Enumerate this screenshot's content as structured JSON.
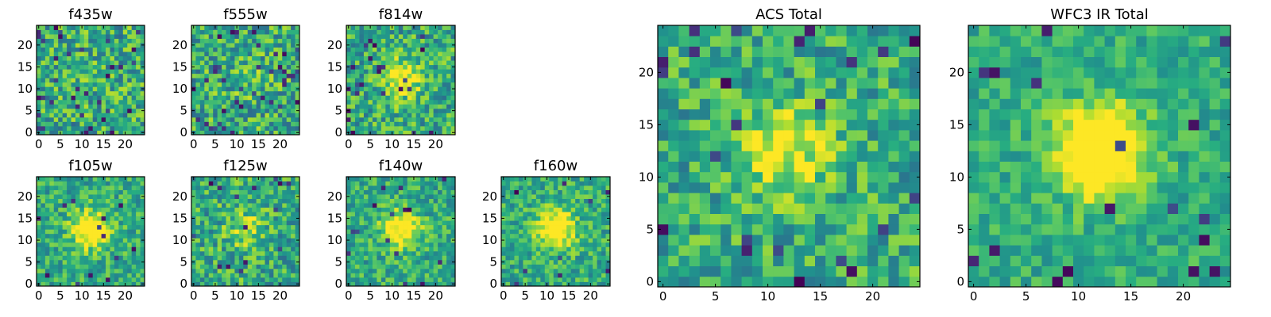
{
  "chart_data": [
    {
      "type": "heatmap",
      "title": "f435w",
      "grid_size": 25,
      "seed": 11,
      "peak": 0.05,
      "hole_frac": 0.05,
      "noise": 0.55,
      "xticks": [
        0,
        5,
        10,
        15,
        20
      ],
      "yticks": [
        0,
        5,
        10,
        15,
        20
      ],
      "xlim": [
        0,
        25
      ],
      "ylim": [
        0,
        25
      ],
      "colormap": "viridis"
    },
    {
      "type": "heatmap",
      "title": "f555w",
      "grid_size": 25,
      "seed": 23,
      "peak": 0.1,
      "hole_frac": 0.05,
      "noise": 0.55,
      "xticks": [
        0,
        5,
        10,
        15,
        20
      ],
      "yticks": [
        0,
        5,
        10,
        15,
        20
      ],
      "xlim": [
        0,
        25
      ],
      "ylim": [
        0,
        25
      ],
      "colormap": "viridis"
    },
    {
      "type": "heatmap",
      "title": "f814w",
      "grid_size": 25,
      "seed": 37,
      "peak": 0.45,
      "hole_frac": 0.04,
      "noise": 0.5,
      "xticks": [
        0,
        5,
        10,
        15,
        20
      ],
      "yticks": [
        0,
        5,
        10,
        15,
        20
      ],
      "xlim": [
        0,
        25
      ],
      "ylim": [
        0,
        25
      ],
      "colormap": "viridis"
    },
    {
      "type": "heatmap",
      "title": "f105w",
      "grid_size": 25,
      "seed": 41,
      "peak": 0.55,
      "hole_frac": 0.02,
      "noise": 0.4,
      "xticks": [
        0,
        5,
        10,
        15,
        20
      ],
      "yticks": [
        0,
        5,
        10,
        15,
        20
      ],
      "xlim": [
        0,
        25
      ],
      "ylim": [
        0,
        25
      ],
      "colormap": "viridis"
    },
    {
      "type": "heatmap",
      "title": "f125w",
      "grid_size": 25,
      "seed": 53,
      "peak": 0.25,
      "hole_frac": 0.03,
      "noise": 0.5,
      "xticks": [
        0,
        5,
        10,
        15,
        20
      ],
      "yticks": [
        0,
        5,
        10,
        15,
        20
      ],
      "xlim": [
        0,
        25
      ],
      "ylim": [
        0,
        25
      ],
      "colormap": "viridis"
    },
    {
      "type": "heatmap",
      "title": "f140w",
      "grid_size": 25,
      "seed": 67,
      "peak": 0.55,
      "hole_frac": 0.02,
      "noise": 0.4,
      "xticks": [
        0,
        5,
        10,
        15,
        20
      ],
      "yticks": [
        0,
        5,
        10,
        15,
        20
      ],
      "xlim": [
        0,
        25
      ],
      "ylim": [
        0,
        25
      ],
      "colormap": "viridis"
    },
    {
      "type": "heatmap",
      "title": "f160w",
      "grid_size": 25,
      "seed": 79,
      "peak": 0.6,
      "hole_frac": 0.02,
      "noise": 0.4,
      "xticks": [
        0,
        5,
        10,
        15,
        20
      ],
      "yticks": [
        0,
        5,
        10,
        15,
        20
      ],
      "xlim": [
        0,
        25
      ],
      "ylim": [
        0,
        25
      ],
      "colormap": "viridis"
    },
    {
      "type": "heatmap",
      "title": "ACS Total",
      "grid_size": 25,
      "seed": 97,
      "peak": 0.4,
      "hole_frac": 0.04,
      "noise": 0.45,
      "xticks": [
        0,
        5,
        10,
        15,
        20
      ],
      "yticks": [
        0,
        5,
        10,
        15,
        20
      ],
      "xlim": [
        0,
        25
      ],
      "ylim": [
        0,
        25
      ],
      "colormap": "viridis"
    },
    {
      "type": "heatmap",
      "title": "WFC3 IR Total",
      "grid_size": 25,
      "seed": 113,
      "peak": 0.75,
      "hole_frac": 0.03,
      "noise": 0.3,
      "xticks": [
        0,
        5,
        10,
        15,
        20
      ],
      "yticks": [
        0,
        5,
        10,
        15,
        20
      ],
      "xlim": [
        0,
        25
      ],
      "ylim": [
        0,
        25
      ],
      "colormap": "viridis"
    }
  ]
}
